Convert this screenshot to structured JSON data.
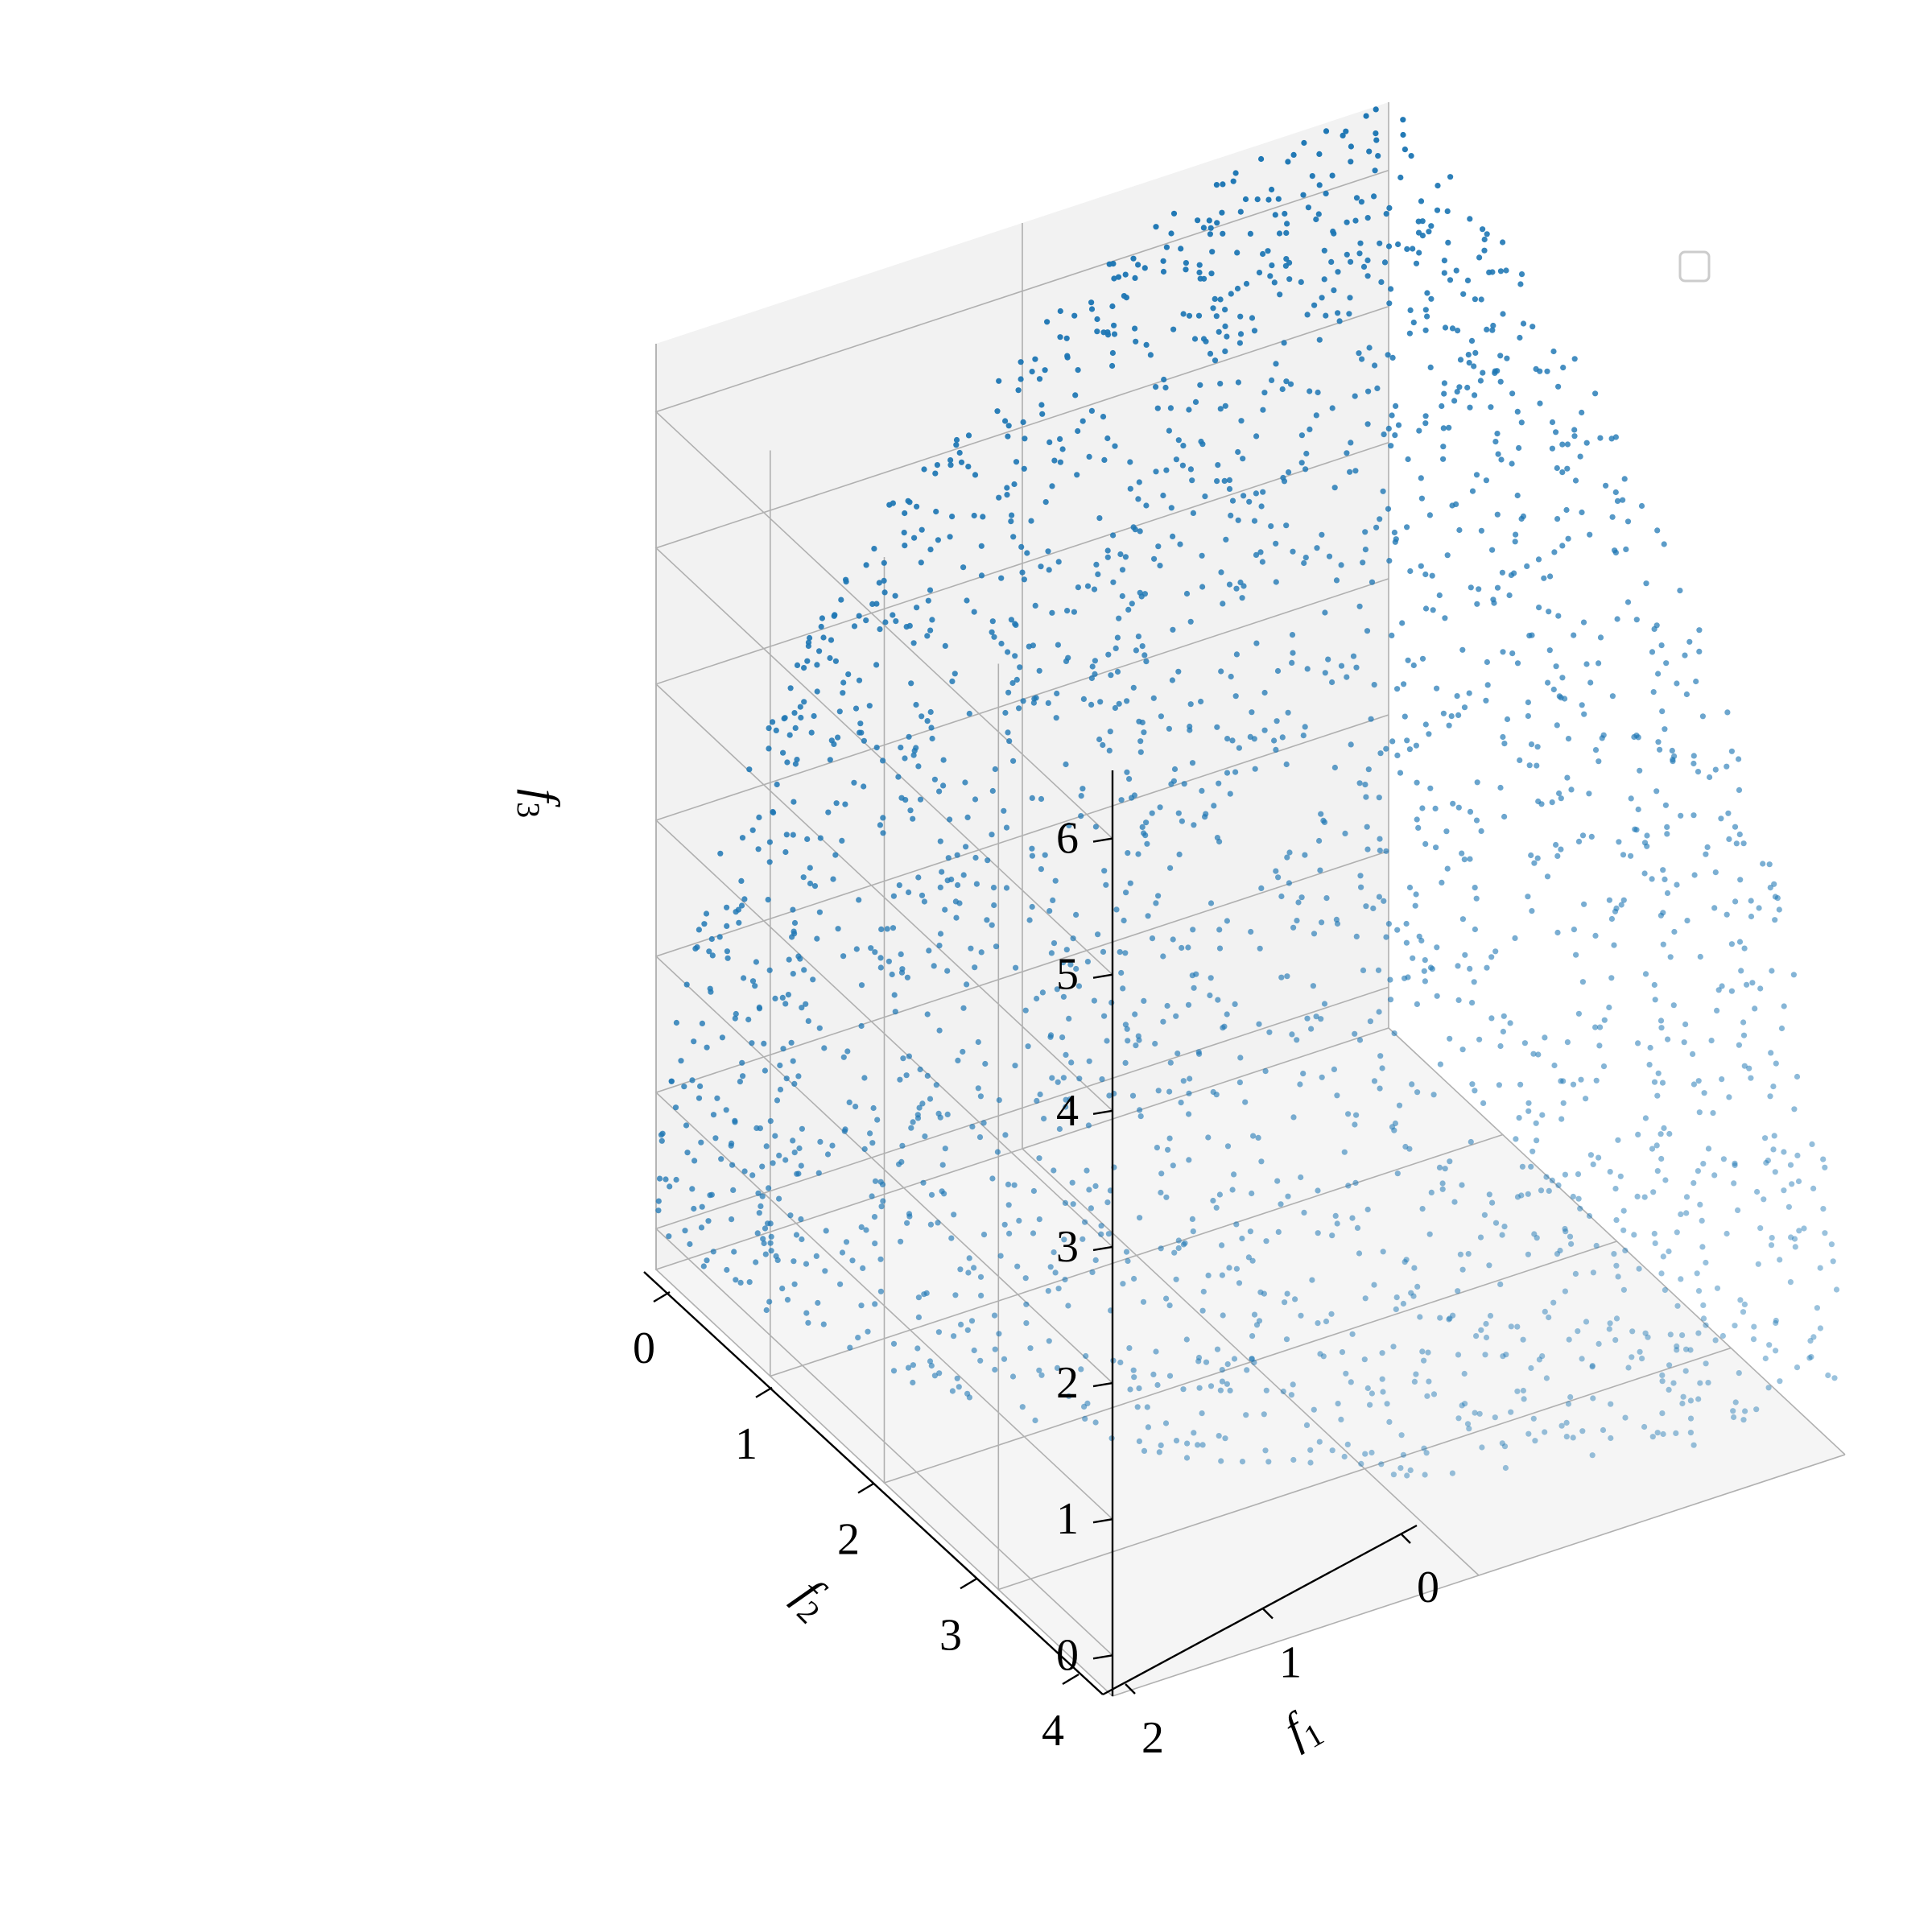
{
  "chart_data": {
    "type": "scatter",
    "dimensions": 3,
    "title": "",
    "xlabel": "f₁",
    "ylabel": "f₂",
    "zlabel": "f₃",
    "axis_labels": {
      "x": {
        "main": "f",
        "sub": "1"
      },
      "y": {
        "main": "f",
        "sub": "2"
      },
      "z": {
        "main": "f",
        "sub": "3"
      }
    },
    "xlim": [
      0,
      2
    ],
    "ylim": [
      0,
      4
    ],
    "zlim": [
      -0.3,
      6.5
    ],
    "xticks": [
      "0",
      "1",
      "2"
    ],
    "yticks": [
      "0",
      "1",
      "2",
      "3",
      "4"
    ],
    "zticks": [
      "0",
      "1",
      "2",
      "3",
      "4",
      "5",
      "6"
    ],
    "grid": true,
    "legend": {
      "placement": "top-right",
      "entries": []
    },
    "series": [
      {
        "color": "#1f77b4",
        "marker": "o",
        "shape": "points sampled on the Pareto front surface f1=2cos(u)cos(v), f2=4cos(u)sin(v), f3=6.5sin(u) for u,v in [0, pi/2]",
        "point_count": 2400,
        "points": [
          [
            2.0,
            0.0,
            0.0
          ],
          [
            1.85,
            1.53,
            0.0
          ],
          [
            1.41,
            2.83,
            0.0
          ],
          [
            0.77,
            3.7,
            0.0
          ],
          [
            0.0,
            4.0,
            0.0
          ],
          [
            1.73,
            0.0,
            3.25
          ],
          [
            1.6,
            1.32,
            3.25
          ],
          [
            1.22,
            2.45,
            3.25
          ],
          [
            0.66,
            3.2,
            3.25
          ],
          [
            0.0,
            3.46,
            3.25
          ],
          [
            1.0,
            0.0,
            5.63
          ],
          [
            0.92,
            0.77,
            5.63
          ],
          [
            0.71,
            1.41,
            5.63
          ],
          [
            0.38,
            1.85,
            5.63
          ],
          [
            0.0,
            2.0,
            5.63
          ],
          [
            0.0,
            0.0,
            6.5
          ]
        ]
      }
    ]
  }
}
